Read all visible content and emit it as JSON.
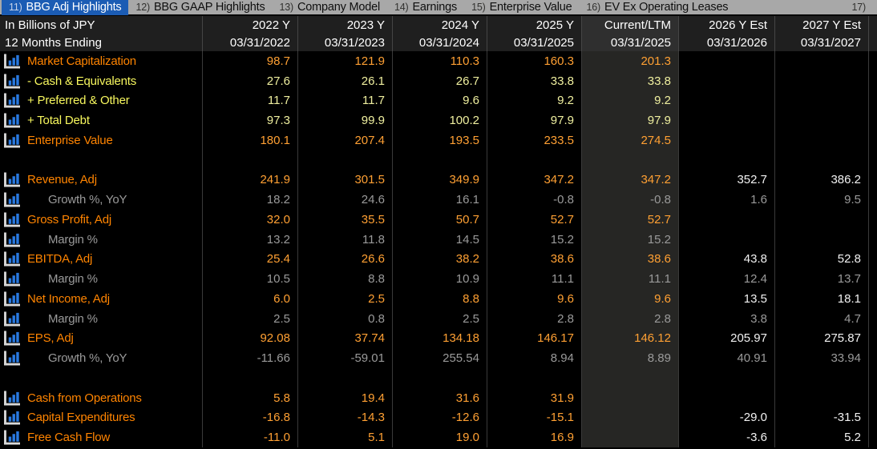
{
  "tabs": [
    {
      "num": "11)",
      "label": "BBG Adj Highlights",
      "selected": true
    },
    {
      "num": "12)",
      "label": "BBG GAAP Highlights",
      "selected": false
    },
    {
      "num": "13)",
      "label": "Company Model",
      "selected": false
    },
    {
      "num": "14)",
      "label": "Earnings",
      "selected": false
    },
    {
      "num": "15)",
      "label": "Enterprise Value",
      "selected": false
    },
    {
      "num": "16)",
      "label": "EV Ex Operating Leases",
      "selected": false
    },
    {
      "num": "17)",
      "label": "",
      "selected": false
    }
  ],
  "header": {
    "unit_label": "In Billions of JPY",
    "period_label": "12 Months Ending",
    "columns": [
      {
        "title": "2022 Y",
        "date": "03/31/2022",
        "highlight": false
      },
      {
        "title": "2023 Y",
        "date": "03/31/2023",
        "highlight": false
      },
      {
        "title": "2024 Y",
        "date": "03/31/2024",
        "highlight": false
      },
      {
        "title": "2025 Y",
        "date": "03/31/2025",
        "highlight": false
      },
      {
        "title": "Current/LTM",
        "date": "03/31/2025",
        "highlight": true
      },
      {
        "title": "2026 Y Est",
        "date": "03/31/2026",
        "highlight": false
      },
      {
        "title": "2027 Y Est",
        "date": "03/31/2027",
        "highlight": false
      }
    ]
  },
  "table": {
    "rows": [
      {
        "label": "Market Capitalization",
        "style": "orange",
        "indent": false,
        "blank": false,
        "icon": "bar-chart-icon",
        "values": [
          "98.7",
          "121.9",
          "110.3",
          "160.3",
          "201.3",
          "",
          ""
        ]
      },
      {
        "label": "- Cash & Equivalents",
        "style": "yellow",
        "indent": false,
        "blank": false,
        "icon": "bar-chart-icon",
        "values": [
          "27.6",
          "26.1",
          "26.7",
          "33.8",
          "33.8",
          "",
          ""
        ]
      },
      {
        "label": "+ Preferred & Other",
        "style": "yellow",
        "indent": false,
        "blank": false,
        "icon": "bar-chart-icon",
        "values": [
          "11.7",
          "11.7",
          "9.6",
          "9.2",
          "9.2",
          "",
          ""
        ]
      },
      {
        "label": "+ Total Debt",
        "style": "yellow",
        "indent": false,
        "blank": false,
        "icon": "bar-chart-icon",
        "values": [
          "97.3",
          "99.9",
          "100.2",
          "97.9",
          "97.9",
          "",
          ""
        ]
      },
      {
        "label": "Enterprise Value",
        "style": "orange",
        "indent": false,
        "blank": false,
        "icon": "bar-chart-icon",
        "values": [
          "180.1",
          "207.4",
          "193.5",
          "233.5",
          "274.5",
          "",
          ""
        ]
      },
      {
        "label": "",
        "style": "orange",
        "indent": false,
        "blank": true,
        "icon": "",
        "values": [
          "",
          "",
          "",
          "",
          "",
          "",
          ""
        ]
      },
      {
        "label": "Revenue, Adj",
        "style": "orange",
        "indent": false,
        "blank": false,
        "icon": "bar-chart-icon",
        "values": [
          "241.9",
          "301.5",
          "349.9",
          "347.2",
          "347.2",
          "352.7",
          "386.2"
        ]
      },
      {
        "label": "Growth %, YoY",
        "style": "gray",
        "indent": true,
        "blank": false,
        "icon": "bar-chart-icon",
        "values": [
          "18.2",
          "24.6",
          "16.1",
          "-0.8",
          "-0.8",
          "1.6",
          "9.5"
        ]
      },
      {
        "label": "Gross Profit, Adj",
        "style": "orange",
        "indent": false,
        "blank": false,
        "icon": "bar-chart-icon",
        "values": [
          "32.0",
          "35.5",
          "50.7",
          "52.7",
          "52.7",
          "",
          ""
        ]
      },
      {
        "label": "Margin %",
        "style": "gray",
        "indent": true,
        "blank": false,
        "icon": "bar-chart-icon",
        "values": [
          "13.2",
          "11.8",
          "14.5",
          "15.2",
          "15.2",
          "",
          ""
        ]
      },
      {
        "label": "EBITDA, Adj",
        "style": "orange",
        "indent": false,
        "blank": false,
        "icon": "bar-chart-icon",
        "values": [
          "25.4",
          "26.6",
          "38.2",
          "38.6",
          "38.6",
          "43.8",
          "52.8"
        ]
      },
      {
        "label": "Margin %",
        "style": "gray",
        "indent": true,
        "blank": false,
        "icon": "bar-chart-icon",
        "values": [
          "10.5",
          "8.8",
          "10.9",
          "11.1",
          "11.1",
          "12.4",
          "13.7"
        ]
      },
      {
        "label": "Net Income, Adj",
        "style": "orange",
        "indent": false,
        "blank": false,
        "icon": "bar-chart-icon",
        "values": [
          "6.0",
          "2.5",
          "8.8",
          "9.6",
          "9.6",
          "13.5",
          "18.1"
        ]
      },
      {
        "label": "Margin %",
        "style": "gray",
        "indent": true,
        "blank": false,
        "icon": "bar-chart-icon",
        "values": [
          "2.5",
          "0.8",
          "2.5",
          "2.8",
          "2.8",
          "3.8",
          "4.7"
        ]
      },
      {
        "label": "EPS, Adj",
        "style": "orange",
        "indent": false,
        "blank": false,
        "icon": "bar-chart-icon",
        "values": [
          "92.08",
          "37.74",
          "134.18",
          "146.17",
          "146.12",
          "205.97",
          "275.87"
        ]
      },
      {
        "label": "Growth %, YoY",
        "style": "gray",
        "indent": true,
        "blank": false,
        "icon": "bar-chart-icon",
        "values": [
          "-11.66",
          "-59.01",
          "255.54",
          "8.94",
          "8.89",
          "40.91",
          "33.94"
        ]
      },
      {
        "label": "",
        "style": "orange",
        "indent": false,
        "blank": true,
        "icon": "",
        "values": [
          "",
          "",
          "",
          "",
          "",
          "",
          ""
        ]
      },
      {
        "label": "Cash from Operations",
        "style": "orange",
        "indent": false,
        "blank": false,
        "icon": "bar-chart-icon",
        "values": [
          "5.8",
          "19.4",
          "31.6",
          "31.9",
          "",
          "",
          ""
        ]
      },
      {
        "label": "Capital Expenditures",
        "style": "orange",
        "indent": false,
        "blank": false,
        "icon": "bar-chart-icon",
        "values": [
          "-16.8",
          "-14.3",
          "-12.6",
          "-15.1",
          "",
          "-29.0",
          "-31.5"
        ]
      },
      {
        "label": "Free Cash Flow",
        "style": "orange",
        "indent": false,
        "blank": false,
        "icon": "bar-chart-icon",
        "values": [
          "-11.0",
          "5.1",
          "19.0",
          "16.9",
          "",
          "-3.6",
          "5.2"
        ]
      }
    ]
  },
  "colors": {
    "accent_orange_label": "#ff8400",
    "accent_orange_value": "#ffa033",
    "accent_yellow_label": "#f7f75e",
    "accent_yellow_value": "#efef9f",
    "muted_gray": "#9a9a9a",
    "estimate_white": "#f2f2f2",
    "selected_tab_blue": "#1b5cb4",
    "tabbar_gray": "#a8a8a8",
    "header_band_bg": "#1f1f1f",
    "highlight_column_bg": "#262624",
    "icon_bar_blue": "#2979e0"
  }
}
